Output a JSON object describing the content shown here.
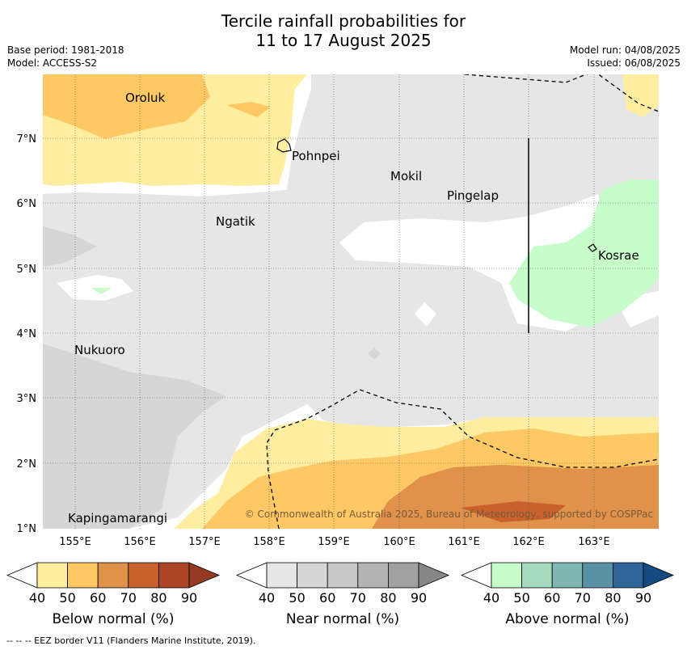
{
  "title_line1": "Tercile rainfall probabilities for",
  "title_line2": "11 to 17 August 2025",
  "base_period": "Base period: 1981-2018",
  "model": "Model: ACCESS-S2",
  "model_run": "Model run: 04/08/2025",
  "issued": "Issued: 06/08/2025",
  "copyright": "© Commonwealth of Australia 2025, Bureau of Meteorology, supported by COSPPac",
  "map": {
    "lat_labels": [
      "7°N",
      "6°N",
      "5°N",
      "4°N",
      "3°N",
      "2°N",
      "1°N"
    ],
    "lon_labels": [
      "155°E",
      "156°E",
      "157°E",
      "158°E",
      "159°E",
      "160°E",
      "161°E",
      "162°E",
      "163°E"
    ],
    "places": [
      "Oroluk",
      "Pohnpei",
      "Mokil",
      "Pingelap",
      "Ngatik",
      "Kosrae",
      "Nukuoro",
      "Kapingamarangi"
    ]
  },
  "colorbars": [
    {
      "label": "Below normal (%)",
      "ticks": [
        "40",
        "50",
        "60",
        "70",
        "80",
        "90"
      ],
      "colors": [
        "#ffeda0",
        "#fec965",
        "#e0924a",
        "#c9612f",
        "#ad4527",
        "#943a22"
      ]
    },
    {
      "label": "Near normal (%)",
      "ticks": [
        "40",
        "50",
        "60",
        "70",
        "80",
        "90"
      ],
      "colors": [
        "#e6e6e6",
        "#d6d6d6",
        "#c8c8c8",
        "#b4b4b4",
        "#a0a0a0",
        "#878787"
      ]
    },
    {
      "label": "Above normal (%)",
      "ticks": [
        "40",
        "50",
        "60",
        "70",
        "80",
        "90"
      ],
      "colors": [
        "#c7fccb",
        "#a5dabf",
        "#81b7b3",
        "#5a92a5",
        "#2e6497",
        "#144c82"
      ]
    }
  ],
  "footer": "--  --  -- EEZ border V11 (Flanders Marine Institute, 2019)."
}
